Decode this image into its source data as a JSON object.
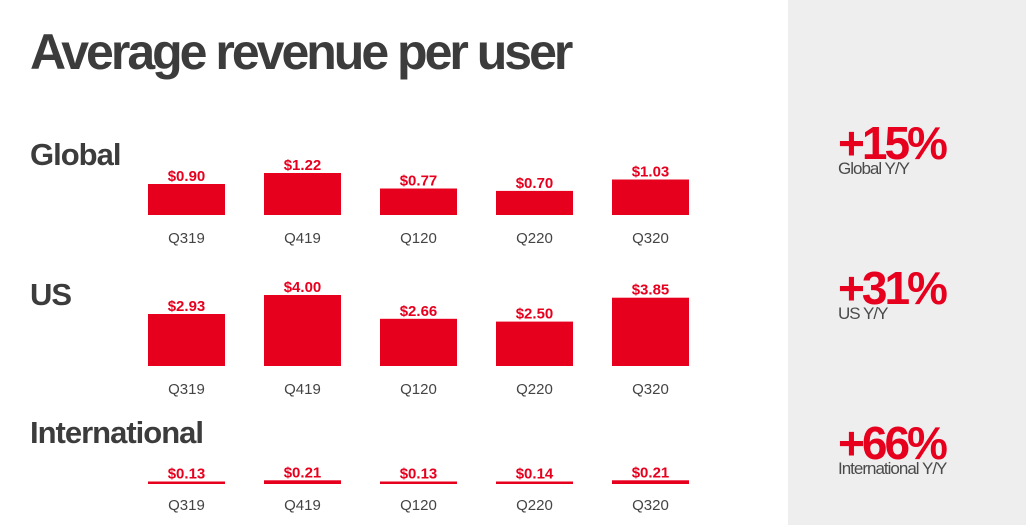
{
  "title": "Average revenue per user",
  "colors": {
    "accent": "#e6001e",
    "text": "#3c3c3c",
    "panel": "#eeeeef"
  },
  "chart_data": [
    {
      "type": "bar",
      "title": "Global",
      "categories": [
        "Q319",
        "Q419",
        "Q120",
        "Q220",
        "Q320"
      ],
      "values": [
        0.9,
        1.22,
        0.77,
        0.7,
        1.03
      ],
      "labels": [
        "$0.90",
        "$1.22",
        "$0.77",
        "$0.70",
        "$1.03"
      ],
      "ylim": [
        0,
        1.22
      ],
      "stat": {
        "value": "+15%",
        "label": "Global Y/Y"
      }
    },
    {
      "type": "bar",
      "title": "US",
      "categories": [
        "Q319",
        "Q419",
        "Q120",
        "Q220",
        "Q320"
      ],
      "values": [
        2.93,
        4.0,
        2.66,
        2.5,
        3.85
      ],
      "labels": [
        "$2.93",
        "$4.00",
        "$2.66",
        "$2.50",
        "$3.85"
      ],
      "ylim": [
        0,
        4.0
      ],
      "stat": {
        "value": "+31%",
        "label": "US Y/Y"
      }
    },
    {
      "type": "bar",
      "title": "International",
      "categories": [
        "Q319",
        "Q419",
        "Q120",
        "Q220",
        "Q320"
      ],
      "values": [
        0.13,
        0.21,
        0.13,
        0.14,
        0.21
      ],
      "labels": [
        "$0.13",
        "$0.21",
        "$0.13",
        "$0.14",
        "$0.21"
      ],
      "ylim": [
        0,
        4.0
      ],
      "stat": {
        "value": "+66%",
        "label": "International Y/Y"
      }
    }
  ]
}
